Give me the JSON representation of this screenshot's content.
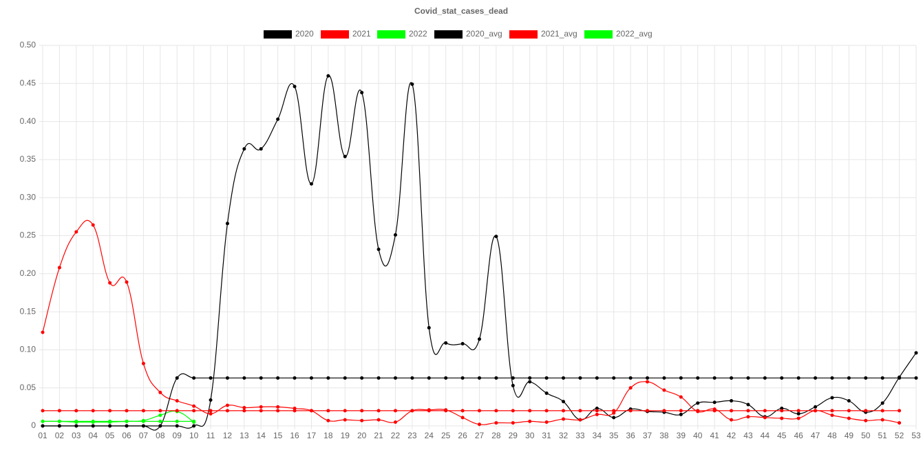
{
  "chart_data": {
    "type": "line",
    "title": "Covid_stat_cases_dead",
    "categories": [
      "01",
      "02",
      "03",
      "04",
      "05",
      "06",
      "07",
      "08",
      "09",
      "10",
      "11",
      "12",
      "13",
      "14",
      "15",
      "16",
      "17",
      "18",
      "19",
      "20",
      "21",
      "22",
      "23",
      "24",
      "25",
      "26",
      "27",
      "28",
      "29",
      "30",
      "31",
      "32",
      "33",
      "34",
      "35",
      "36",
      "37",
      "38",
      "39",
      "40",
      "41",
      "42",
      "43",
      "44",
      "45",
      "46",
      "47",
      "48",
      "49",
      "50",
      "51",
      "52",
      "53"
    ],
    "series": [
      {
        "name": "2020",
        "color": "#000000",
        "values": [
          0,
          0,
          0,
          0,
          0,
          0,
          0,
          0,
          0,
          0,
          0.034,
          0.266,
          0.364,
          0.364,
          0.403,
          0.446,
          0.318,
          0.46,
          0.354,
          0.438,
          0.232,
          0.251,
          0.449,
          0.129,
          0.109,
          0.108,
          0.114,
          0.249,
          0.053,
          0.058,
          0.043,
          0.032,
          0.008,
          0.023,
          0.011,
          0.022,
          0.019,
          0.018,
          0.015,
          0.03,
          0.031,
          0.033,
          0.028,
          0.012,
          0.023,
          0.016,
          0.025,
          0.037,
          0.033,
          0.018,
          0.03,
          0.064,
          0.096
        ]
      },
      {
        "name": "2021",
        "color": "#ff0000",
        "values": [
          0.123,
          0.208,
          0.255,
          0.264,
          0.188,
          0.189,
          0.082,
          0.044,
          0.033,
          0.026,
          0.016,
          0.027,
          0.024,
          0.025,
          0.025,
          0.023,
          0.02,
          0.007,
          0.008,
          0.007,
          0.008,
          0.005,
          0.02,
          0.021,
          0.021,
          0.011,
          0.002,
          0.004,
          0.004,
          0.006,
          0.005,
          0.009,
          0.008,
          0.015,
          0.017,
          0.05,
          0.058,
          0.047,
          0.038,
          0.019,
          0.022,
          0.008,
          0.012,
          0.011,
          0.01,
          0.01,
          0.02,
          0.014,
          0.01,
          0.007,
          0.008,
          0.004,
          null
        ]
      },
      {
        "name": "2022",
        "color": "#00ff00",
        "values": [
          0.006,
          0.006,
          0.005,
          0.005,
          0.005,
          0.006,
          0.007,
          0.014,
          0.019,
          0.005,
          null,
          null,
          null,
          null,
          null,
          null,
          null,
          null,
          null,
          null,
          null,
          null,
          null,
          null,
          null,
          null,
          null,
          null,
          null,
          null,
          null,
          null,
          null,
          null,
          null,
          null,
          null,
          null,
          null,
          null,
          null,
          null,
          null,
          null,
          null,
          null,
          null,
          null,
          null,
          null,
          null,
          null,
          null
        ]
      },
      {
        "name": "2020_avg",
        "color": "#000000",
        "values": [
          0,
          0,
          0,
          0,
          0,
          0,
          0,
          0,
          0.063,
          0.063,
          0.063,
          0.063,
          0.063,
          0.063,
          0.063,
          0.063,
          0.063,
          0.063,
          0.063,
          0.063,
          0.063,
          0.063,
          0.063,
          0.063,
          0.063,
          0.063,
          0.063,
          0.063,
          0.063,
          0.063,
          0.063,
          0.063,
          0.063,
          0.063,
          0.063,
          0.063,
          0.063,
          0.063,
          0.063,
          0.063,
          0.063,
          0.063,
          0.063,
          0.063,
          0.063,
          0.063,
          0.063,
          0.063,
          0.063,
          0.063,
          0.063,
          0.063,
          0.063
        ]
      },
      {
        "name": "2021_avg",
        "color": "#ff0000",
        "values": [
          0.02,
          0.02,
          0.02,
          0.02,
          0.02,
          0.02,
          0.02,
          0.02,
          0.02,
          0.02,
          0.02,
          0.02,
          0.02,
          0.02,
          0.02,
          0.02,
          0.02,
          0.02,
          0.02,
          0.02,
          0.02,
          0.02,
          0.02,
          0.02,
          0.02,
          0.02,
          0.02,
          0.02,
          0.02,
          0.02,
          0.02,
          0.02,
          0.02,
          0.02,
          0.02,
          0.02,
          0.02,
          0.02,
          0.02,
          0.02,
          0.02,
          0.02,
          0.02,
          0.02,
          0.02,
          0.02,
          0.02,
          0.02,
          0.02,
          0.02,
          0.02,
          0.02,
          null
        ]
      },
      {
        "name": "2022_avg",
        "color": "#00ff00",
        "values": [
          0.006,
          0.006,
          0.006,
          0.006,
          0.006,
          0.006,
          0.006,
          0.006,
          0.006,
          0.006,
          null,
          null,
          null,
          null,
          null,
          null,
          null,
          null,
          null,
          null,
          null,
          null,
          null,
          null,
          null,
          null,
          null,
          null,
          null,
          null,
          null,
          null,
          null,
          null,
          null,
          null,
          null,
          null,
          null,
          null,
          null,
          null,
          null,
          null,
          null,
          null,
          null,
          null,
          null,
          null,
          null,
          null,
          null
        ]
      }
    ],
    "ylim": [
      0,
      0.5
    ],
    "yticks": [
      0,
      0.05,
      {
        "value": 0.1,
        "label": "0.10"
      },
      0.15,
      {
        "value": 0.2,
        "label": "0.20"
      },
      0.25,
      {
        "value": 0.3,
        "label": "0.30"
      },
      0.35,
      {
        "value": 0.4,
        "label": "0.40"
      },
      0.45,
      {
        "value": 0.5,
        "label": "0.50"
      }
    ],
    "grid": true,
    "legend": "top"
  }
}
